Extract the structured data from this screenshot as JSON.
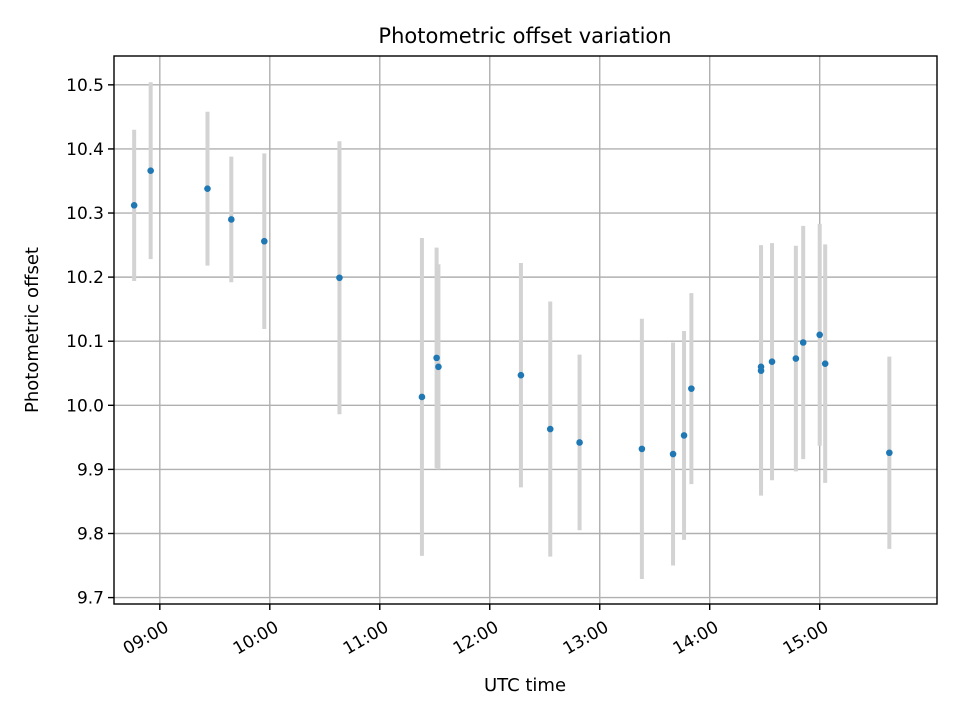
{
  "chart_data": {
    "type": "scatter",
    "title": "Photometric offset variation",
    "xlabel": "UTC time",
    "ylabel": "Photometric offset",
    "x_axis": "time",
    "xlim": [
      "08:35",
      "16:04"
    ],
    "ylim": [
      9.69,
      10.545
    ],
    "xticks": [
      "09:00",
      "10:00",
      "11:00",
      "12:00",
      "13:00",
      "14:00",
      "15:00"
    ],
    "yticks": [
      9.7,
      9.8,
      9.9,
      10.0,
      10.1,
      10.2,
      10.3,
      10.4,
      10.5
    ],
    "ytick_labels": [
      "9.7",
      "9.8",
      "9.9",
      "10.0",
      "10.1",
      "10.2",
      "10.3",
      "10.4",
      "10.5"
    ],
    "grid": true,
    "point_color": "#1f77b4",
    "errorbar_color": "#d3d3d3",
    "points": [
      {
        "x": "08:46",
        "y": 10.312,
        "err": 0.118
      },
      {
        "x": "08:55",
        "y": 10.366,
        "err": 0.138
      },
      {
        "x": "09:26",
        "y": 10.338,
        "err": 0.12
      },
      {
        "x": "09:39",
        "y": 10.29,
        "err": 0.098
      },
      {
        "x": "09:57",
        "y": 10.256,
        "err": 0.137
      },
      {
        "x": "10:38",
        "y": 10.199,
        "err": 0.213
      },
      {
        "x": "11:23",
        "y": 10.013,
        "err": 0.248
      },
      {
        "x": "11:31",
        "y": 10.074,
        "err": 0.172
      },
      {
        "x": "11:32",
        "y": 10.06,
        "err": 0.16
      },
      {
        "x": "12:17",
        "y": 10.047,
        "err": 0.175
      },
      {
        "x": "12:33",
        "y": 9.963,
        "err": 0.199
      },
      {
        "x": "12:49",
        "y": 9.942,
        "err": 0.137
      },
      {
        "x": "13:23",
        "y": 9.932,
        "err": 0.203
      },
      {
        "x": "13:40",
        "y": 9.924,
        "err": 0.174
      },
      {
        "x": "13:46",
        "y": 9.953,
        "err": 0.163
      },
      {
        "x": "13:50",
        "y": 10.026,
        "err": 0.149
      },
      {
        "x": "14:28",
        "y": 10.054,
        "err": 0.195
      },
      {
        "x": "14:28",
        "y": 10.06,
        "err": 0.19
      },
      {
        "x": "14:34",
        "y": 10.068,
        "err": 0.185
      },
      {
        "x": "14:47",
        "y": 10.073,
        "err": 0.176
      },
      {
        "x": "14:51",
        "y": 10.098,
        "err": 0.182
      },
      {
        "x": "15:00",
        "y": 10.11,
        "err": 0.173
      },
      {
        "x": "15:03",
        "y": 10.065,
        "err": 0.186
      },
      {
        "x": "15:38",
        "y": 9.926,
        "err": 0.15
      }
    ]
  }
}
